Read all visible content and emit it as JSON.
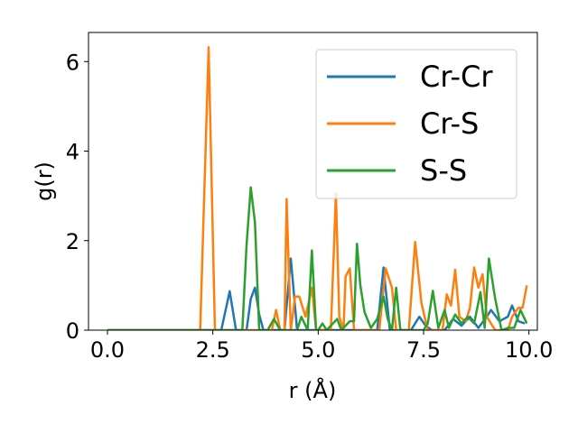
{
  "chart_data": {
    "type": "line",
    "xlabel": "r (Å)",
    "ylabel": "g(r)",
    "xlim": [
      -0.45,
      10.2
    ],
    "ylim": [
      0,
      6.65
    ],
    "xticks": [
      0.0,
      2.5,
      5.0,
      7.5,
      10.0
    ],
    "xtick_labels": [
      "0.0",
      "2.5",
      "5.0",
      "7.5",
      "10.0"
    ],
    "yticks": [
      0,
      2,
      4,
      6
    ],
    "ytick_labels": [
      "0",
      "2",
      "4",
      "6"
    ],
    "grid": false,
    "legend_position": "top-right",
    "series": [
      {
        "name": "Cr-Cr",
        "color": "#1f77b4",
        "points": [
          [
            0.0,
            0.0
          ],
          [
            2.7,
            0.0
          ],
          [
            2.9,
            0.87
          ],
          [
            3.05,
            0.0
          ],
          [
            3.3,
            0.0
          ],
          [
            3.4,
            0.7
          ],
          [
            3.5,
            0.95
          ],
          [
            3.6,
            0.35
          ],
          [
            3.7,
            0.0
          ],
          [
            4.2,
            0.0
          ],
          [
            4.35,
            1.6
          ],
          [
            4.5,
            0.0
          ],
          [
            6.4,
            0.0
          ],
          [
            6.55,
            1.4
          ],
          [
            6.7,
            0.0
          ],
          [
            7.2,
            0.0
          ],
          [
            7.4,
            0.3
          ],
          [
            7.55,
            0.1
          ],
          [
            7.7,
            0.0
          ],
          [
            8.0,
            0.0
          ],
          [
            8.2,
            0.25
          ],
          [
            8.4,
            0.1
          ],
          [
            8.6,
            0.3
          ],
          [
            8.8,
            0.05
          ],
          [
            9.0,
            0.3
          ],
          [
            9.1,
            0.45
          ],
          [
            9.3,
            0.2
          ],
          [
            9.5,
            0.3
          ],
          [
            9.6,
            0.55
          ],
          [
            9.75,
            0.2
          ],
          [
            9.9,
            0.15
          ]
        ]
      },
      {
        "name": "Cr-S",
        "color": "#ff7f0e",
        "points": [
          [
            0.0,
            0.0
          ],
          [
            2.2,
            0.0
          ],
          [
            2.4,
            6.32
          ],
          [
            2.55,
            0.0
          ],
          [
            3.9,
            0.0
          ],
          [
            4.0,
            0.45
          ],
          [
            4.1,
            0.0
          ],
          [
            4.2,
            0.0
          ],
          [
            4.25,
            2.93
          ],
          [
            4.35,
            0.0
          ],
          [
            4.45,
            0.75
          ],
          [
            4.55,
            0.75
          ],
          [
            4.7,
            0.3
          ],
          [
            4.85,
            0.95
          ],
          [
            4.95,
            0.0
          ],
          [
            5.3,
            0.0
          ],
          [
            5.38,
            2.0
          ],
          [
            5.42,
            3.05
          ],
          [
            5.5,
            0.3
          ],
          [
            5.6,
            0.0
          ],
          [
            5.65,
            1.2
          ],
          [
            5.75,
            1.38
          ],
          [
            5.85,
            0.0
          ],
          [
            6.45,
            0.0
          ],
          [
            6.6,
            1.38
          ],
          [
            6.75,
            0.95
          ],
          [
            6.85,
            0.0
          ],
          [
            7.15,
            0.0
          ],
          [
            7.3,
            1.97
          ],
          [
            7.45,
            0.6
          ],
          [
            7.6,
            0.0
          ],
          [
            7.95,
            0.0
          ],
          [
            8.05,
            0.8
          ],
          [
            8.15,
            0.55
          ],
          [
            8.25,
            1.35
          ],
          [
            8.35,
            0.3
          ],
          [
            8.5,
            0.2
          ],
          [
            8.6,
            0.5
          ],
          [
            8.7,
            1.4
          ],
          [
            8.8,
            0.95
          ],
          [
            8.9,
            1.25
          ],
          [
            9.0,
            0.3
          ],
          [
            9.2,
            0.0
          ],
          [
            9.5,
            0.0
          ],
          [
            9.6,
            0.3
          ],
          [
            9.75,
            0.5
          ],
          [
            9.85,
            0.5
          ],
          [
            9.95,
            1.0
          ]
        ]
      },
      {
        "name": "S-S",
        "color": "#2ca02c",
        "points": [
          [
            0.0,
            0.0
          ],
          [
            3.2,
            0.0
          ],
          [
            3.3,
            1.9
          ],
          [
            3.4,
            3.19
          ],
          [
            3.5,
            2.4
          ],
          [
            3.6,
            0.0
          ],
          [
            3.8,
            0.0
          ],
          [
            3.95,
            0.25
          ],
          [
            4.1,
            0.0
          ],
          [
            4.5,
            0.0
          ],
          [
            4.6,
            0.3
          ],
          [
            4.75,
            0.0
          ],
          [
            4.85,
            1.78
          ],
          [
            4.95,
            0.0
          ],
          [
            5.0,
            0.0
          ],
          [
            5.1,
            0.15
          ],
          [
            5.2,
            0.0
          ],
          [
            5.45,
            0.25
          ],
          [
            5.55,
            0.0
          ],
          [
            5.75,
            0.2
          ],
          [
            5.85,
            0.2
          ],
          [
            5.92,
            1.93
          ],
          [
            6.0,
            1.0
          ],
          [
            6.1,
            0.4
          ],
          [
            6.25,
            0.05
          ],
          [
            6.4,
            0.25
          ],
          [
            6.55,
            0.75
          ],
          [
            6.65,
            0.25
          ],
          [
            6.75,
            0.0
          ],
          [
            6.85,
            0.95
          ],
          [
            6.95,
            0.0
          ],
          [
            7.5,
            0.0
          ],
          [
            7.6,
            0.15
          ],
          [
            7.72,
            0.88
          ],
          [
            7.85,
            0.05
          ],
          [
            8.0,
            0.45
          ],
          [
            8.1,
            0.05
          ],
          [
            8.25,
            0.35
          ],
          [
            8.4,
            0.15
          ],
          [
            8.55,
            0.3
          ],
          [
            8.7,
            0.15
          ],
          [
            8.85,
            0.85
          ],
          [
            8.95,
            0.05
          ],
          [
            9.05,
            1.6
          ],
          [
            9.2,
            0.7
          ],
          [
            9.35,
            0.0
          ],
          [
            9.5,
            0.05
          ],
          [
            9.65,
            0.05
          ],
          [
            9.8,
            0.45
          ],
          [
            9.95,
            0.15
          ]
        ]
      }
    ]
  }
}
